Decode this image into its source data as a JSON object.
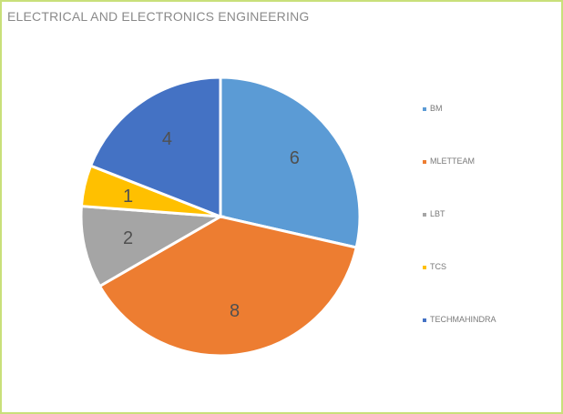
{
  "chart_data": {
    "type": "pie",
    "title": "ELECTRICAL AND ELECTRONICS ENGINEERING",
    "categories": [
      "BM",
      "MLETTEAM",
      "LBT",
      "TCS",
      "TECHMAHINDRA"
    ],
    "values": [
      6,
      8,
      2,
      1,
      4
    ],
    "colors": [
      "#5b9bd5",
      "#ed7d31",
      "#a5a5a5",
      "#ffc000",
      "#4472c4"
    ],
    "legend_position": "right",
    "data_labels": true
  }
}
